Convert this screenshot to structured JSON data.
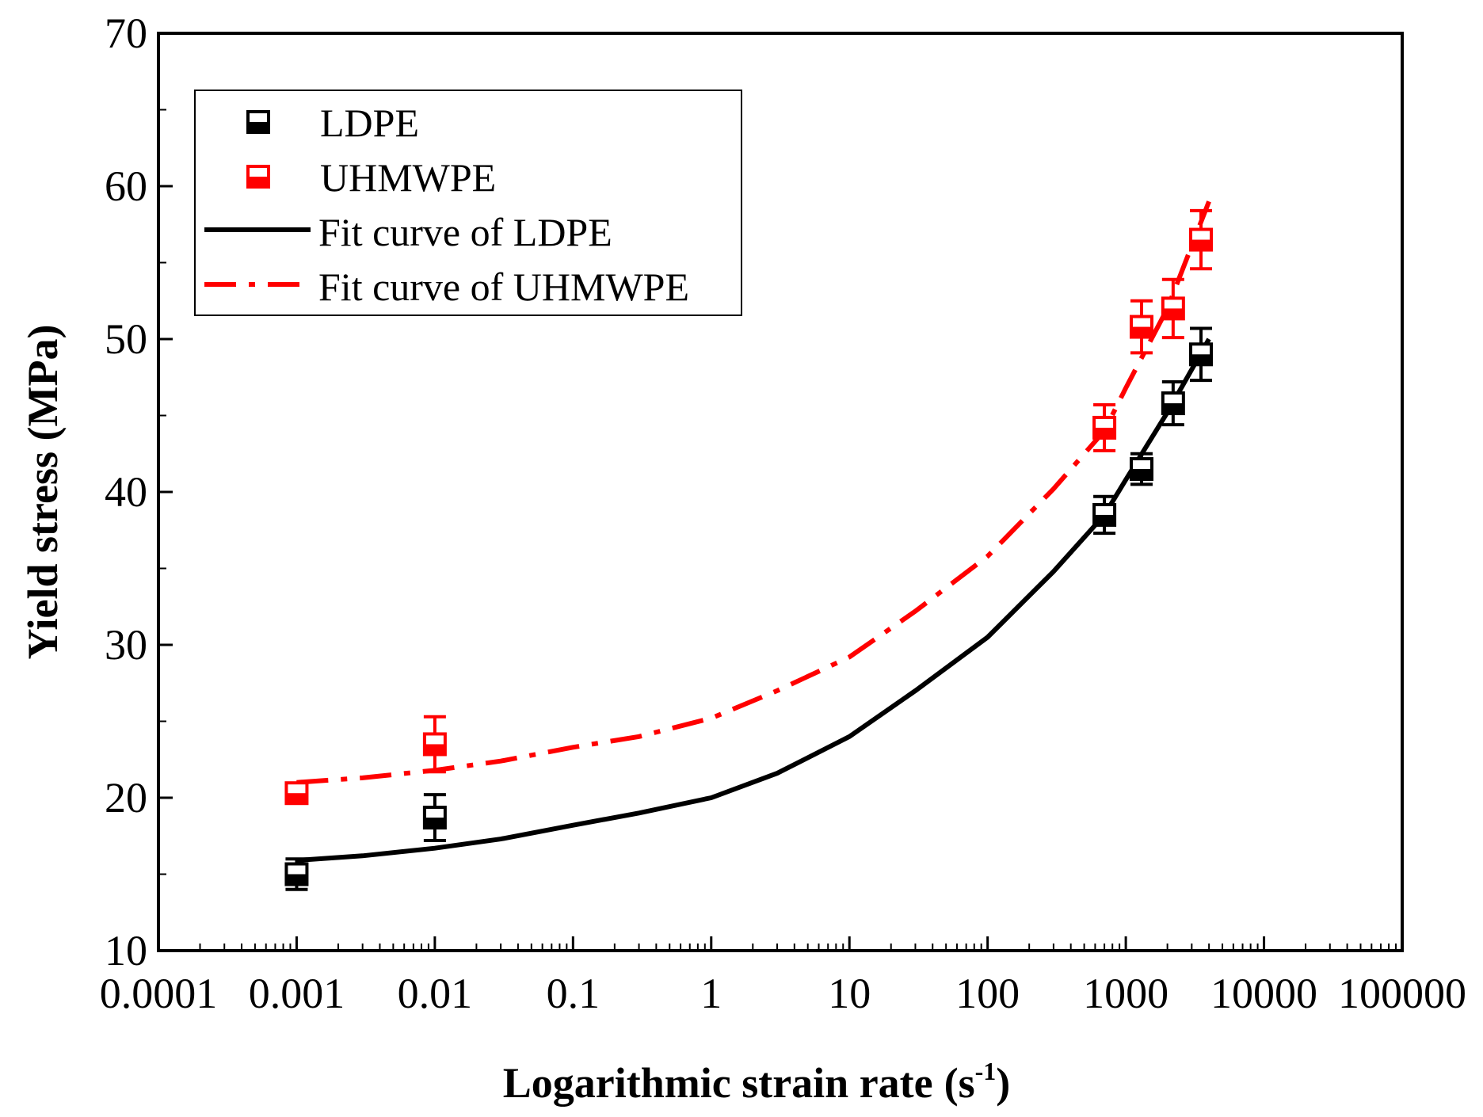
{
  "chart_data": {
    "type": "scatter",
    "title": "",
    "xlabel": "Logarithmic strain rate",
    "xlabel_unit_base": "(s",
    "xlabel_unit_exp": "-1",
    "xlabel_unit_close": ")",
    "ylabel": "Yield stress (MPa)",
    "xscale": "log",
    "xlim": [
      0.0001,
      100000
    ],
    "ylim": [
      10,
      70
    ],
    "grid": false,
    "legend_position": "top-left",
    "x_tick_labels": [
      "0.0001",
      "0.001",
      "0.01",
      "0.1",
      "1",
      "10",
      "100",
      "1000",
      "10000",
      "100000"
    ],
    "x_tick_values": [
      0.0001,
      0.001,
      0.01,
      0.1,
      1,
      10,
      100,
      1000,
      10000,
      100000
    ],
    "y_tick_labels": [
      "10",
      "20",
      "30",
      "40",
      "50",
      "60",
      "70"
    ],
    "y_tick_values": [
      10,
      20,
      30,
      40,
      50,
      60,
      70
    ],
    "series": [
      {
        "name": "LDPE",
        "kind": "points",
        "color": "#000000",
        "x": [
          0.001,
          0.01,
          700,
          1300,
          2200,
          3500
        ],
        "y": [
          15.0,
          18.7,
          38.5,
          41.5,
          45.8,
          49.0
        ],
        "err": [
          1.0,
          1.5,
          1.2,
          1.0,
          1.4,
          1.7
        ]
      },
      {
        "name": "UHMWPE",
        "kind": "points",
        "color": "#ff0000",
        "x": [
          0.001,
          0.01,
          700,
          1300,
          2200,
          3500
        ],
        "y": [
          20.3,
          23.5,
          44.2,
          50.8,
          52.0,
          56.5
        ],
        "err": [
          0.6,
          1.8,
          1.5,
          1.7,
          1.9,
          1.9
        ]
      },
      {
        "name": "Fit curve of LDPE",
        "kind": "line",
        "color": "#000000",
        "dash": "solid",
        "x": [
          0.001,
          0.003,
          0.01,
          0.03,
          0.1,
          0.3,
          1,
          3,
          10,
          30,
          100,
          300,
          700,
          1000,
          2000,
          4000
        ],
        "y": [
          15.9,
          16.2,
          16.7,
          17.3,
          18.2,
          19.0,
          20.0,
          21.6,
          24.0,
          27.0,
          30.5,
          34.8,
          38.5,
          40.8,
          45.2,
          50.0
        ]
      },
      {
        "name": "Fit curve of UHMWPE",
        "kind": "line",
        "color": "#ff0000",
        "dash": "dashdot",
        "x": [
          0.001,
          0.003,
          0.01,
          0.03,
          0.1,
          0.3,
          1,
          3,
          10,
          30,
          100,
          300,
          700,
          1000,
          2000,
          4000
        ],
        "y": [
          21.0,
          21.3,
          21.8,
          22.4,
          23.3,
          24.0,
          25.2,
          27.0,
          29.2,
          32.2,
          35.8,
          40.2,
          44.0,
          46.8,
          52.0,
          59.0
        ]
      }
    ]
  }
}
